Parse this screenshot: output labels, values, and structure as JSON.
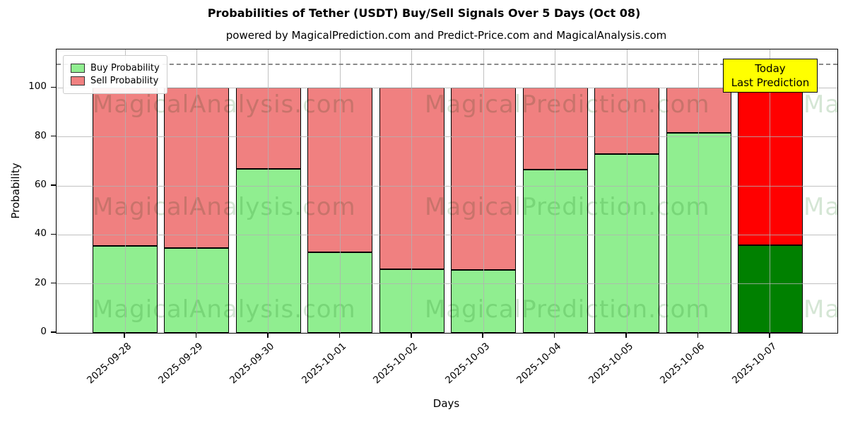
{
  "figure": {
    "title": "Probabilities of Tether (USDT) Buy/Sell Signals Over 5 Days (Oct 08)",
    "subtitle": "powered by MagicalPrediction.com and Predict-Price.com and MagicalAnalysis.com"
  },
  "chart_data": {
    "type": "bar",
    "stacked": true,
    "title": "Probabilities of Tether (USDT) Buy/Sell Signals Over 5 Days (Oct 08)",
    "subtitle": "powered by MagicalPrediction.com and Predict-Price.com and MagicalAnalysis.com",
    "xlabel": "Days",
    "ylabel": "Probability",
    "ylim": [
      0,
      115.7
    ],
    "yticks": [
      0,
      20,
      40,
      60,
      80,
      100
    ],
    "grid": true,
    "legend_position": "upper left",
    "categories": [
      "2025-09-28",
      "2025-09-29",
      "2025-09-30",
      "2025-10-01",
      "2025-10-02",
      "2025-10-03",
      "2025-10-04",
      "2025-10-05",
      "2025-10-06",
      "2025-10-07"
    ],
    "series": [
      {
        "name": "Buy Probability",
        "color": "#90EE90",
        "highlight_color": "#008000",
        "values": [
          35.6,
          34.7,
          66.9,
          33.0,
          26.0,
          25.6,
          66.7,
          72.9,
          81.7,
          35.9
        ]
      },
      {
        "name": "Sell Probability",
        "color": "#F08080",
        "highlight_color": "#FF0000",
        "values": [
          64.4,
          65.3,
          33.1,
          67.0,
          74.0,
          74.4,
          33.3,
          27.1,
          18.3,
          64.1
        ]
      }
    ],
    "highlight_category": "2025-10-07",
    "threshold_line": {
      "y": 110,
      "style": "dashed",
      "color": "#8a8a8a"
    },
    "annotation": {
      "lines": [
        "Today",
        "Last Prediction"
      ],
      "bg_color": "#FFFF00",
      "target_category": "2025-10-07"
    },
    "watermarks": [
      "MagicalAnalysis.com",
      "MagicalPrediction.com"
    ]
  }
}
